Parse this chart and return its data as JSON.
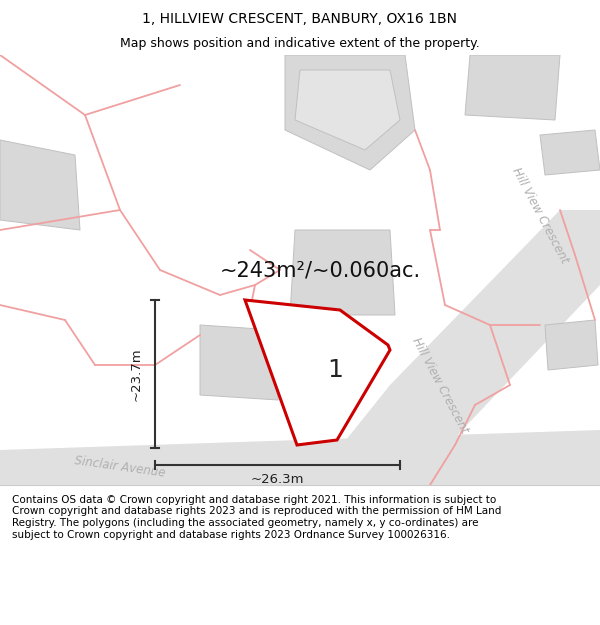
{
  "title": "1, HILLVIEW CRESCENT, BANBURY, OX16 1BN",
  "subtitle": "Map shows position and indicative extent of the property.",
  "footer": "Contains OS data © Crown copyright and database right 2021. This information is subject to Crown copyright and database rights 2023 and is reproduced with the permission of HM Land Registry. The polygons (including the associated geometry, namely x, y co-ordinates) are subject to Crown copyright and database rights 2023 Ordnance Survey 100026316.",
  "map_bg": "#f0f0f0",
  "building_color": "#d8d8d8",
  "building_edge": "#c0c0c0",
  "pink_line_color": "#f0a0a0",
  "road_color": "#e0e0e0",
  "road_label_color": "#b0b0b0",
  "plot_outline_color": "#cc0000",
  "area_label": "~243m²/~0.060ac.",
  "plot_label": "1",
  "dim_width": "~26.3m",
  "dim_height": "~23.7m",
  "road_label_hvc_right": "Hill View Crescent",
  "road_label_hvc_center": "Hill View Crescent",
  "road_label_sinclair": "Sinclair Avenue",
  "figsize": [
    6.0,
    6.25
  ],
  "dpi": 100,
  "title_fontsize": 10,
  "subtitle_fontsize": 9,
  "footer_fontsize": 7.5
}
